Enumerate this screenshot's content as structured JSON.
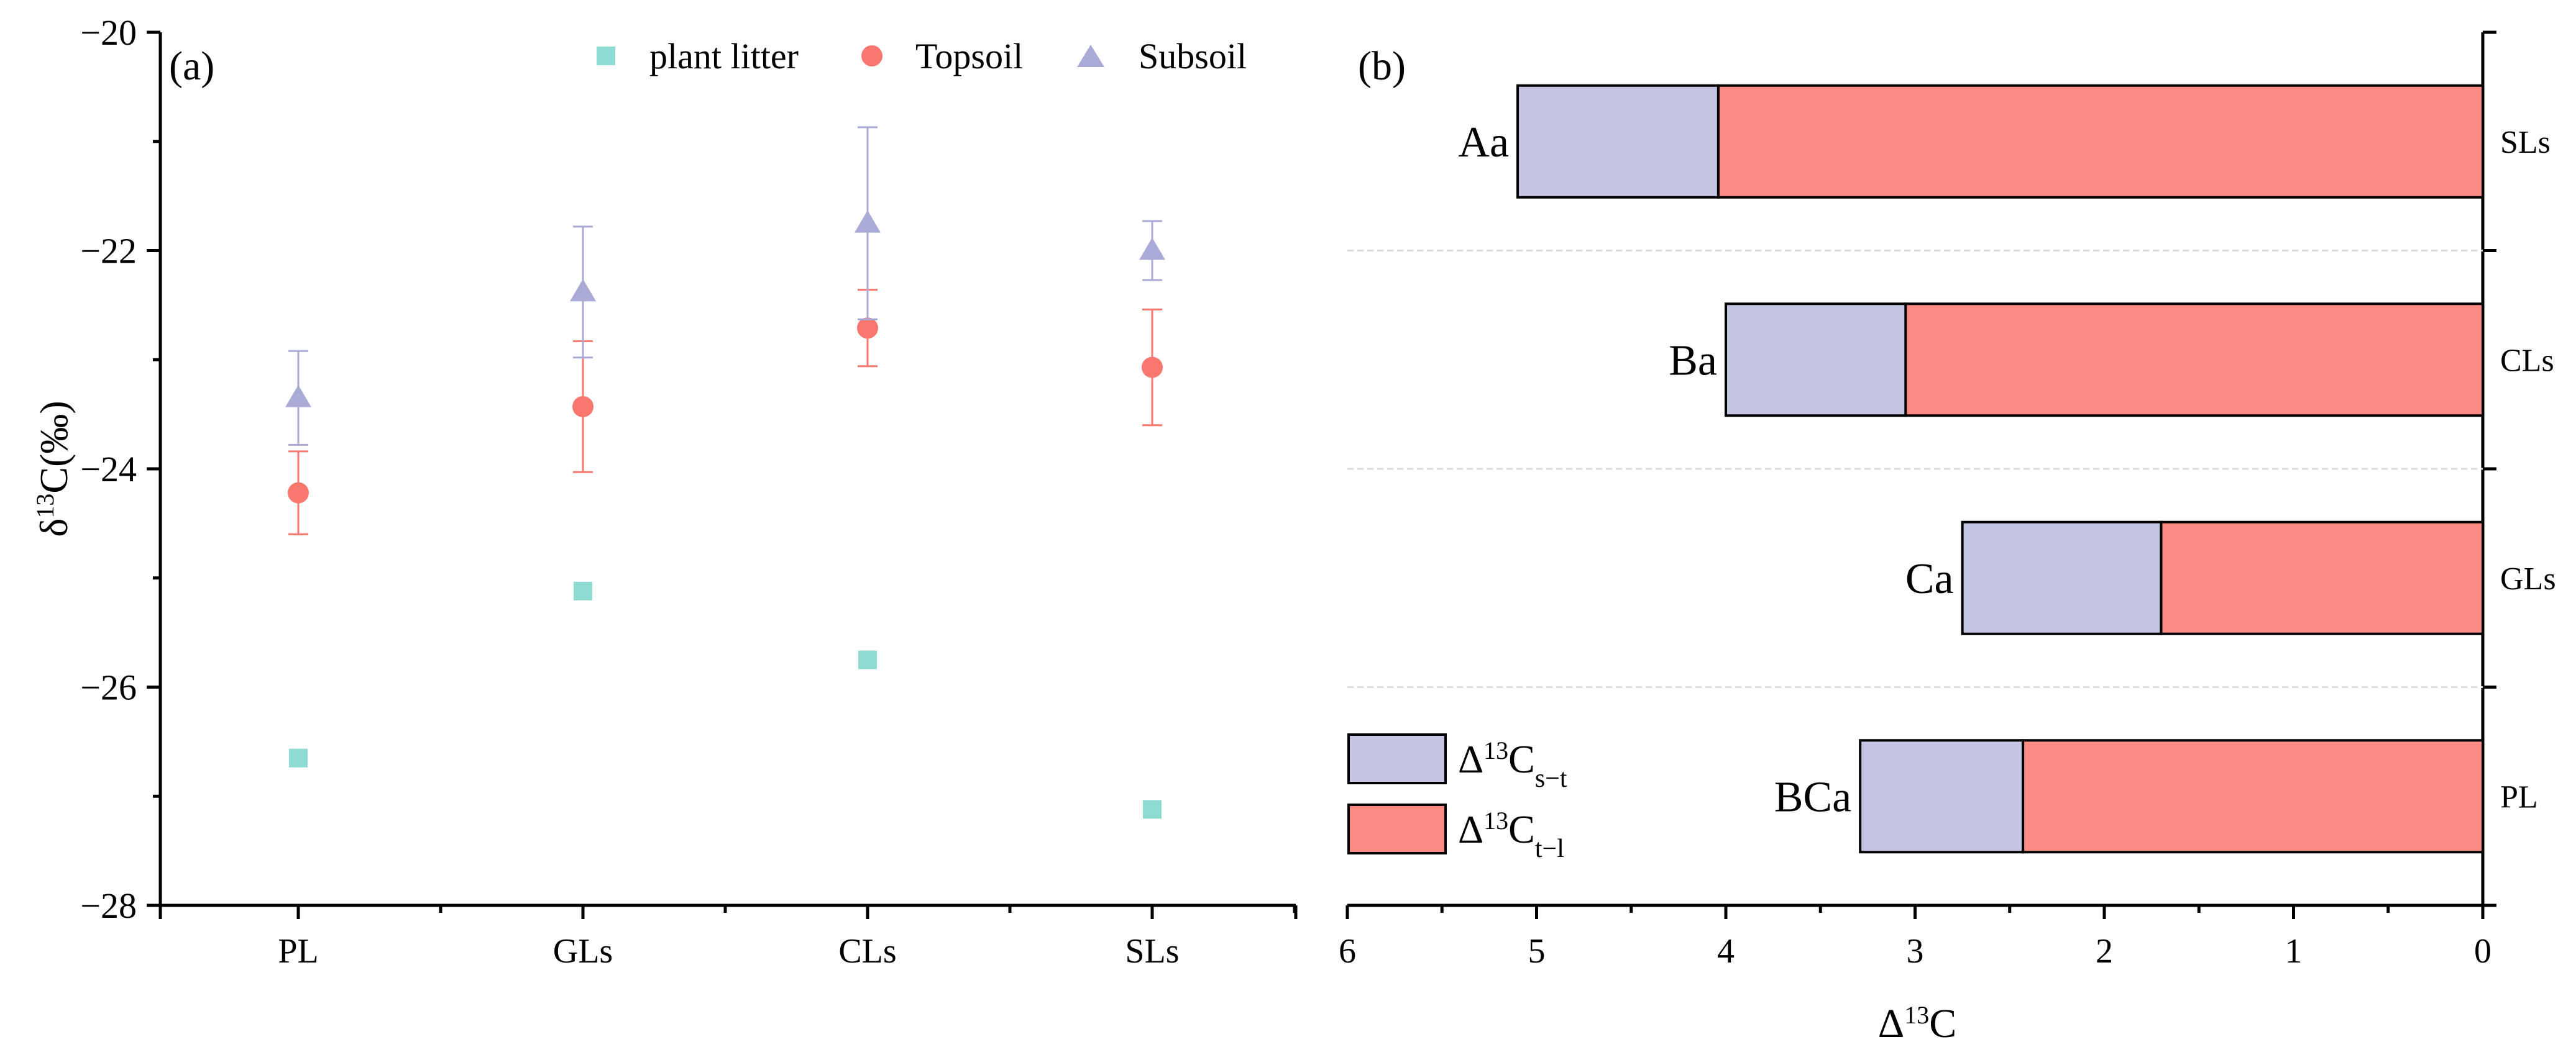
{
  "chart_data": [
    {
      "panel_label": "(a)",
      "type": "scatter",
      "ylabel_main": "δ",
      "ylabel_sup": "13",
      "ylabel_rest": "C(‰)",
      "categories": [
        "PL",
        "GLs",
        "CLs",
        "SLs"
      ],
      "ylim": [
        -28,
        -20
      ],
      "yticks": [
        "−28",
        "−26",
        "−24",
        "−22",
        "−20"
      ],
      "series": [
        {
          "name": "plant litter",
          "marker": "square",
          "color": "#8edbd4",
          "values": [
            -26.65,
            -25.12,
            -25.75,
            -27.12
          ],
          "errors": [
            0,
            0,
            0,
            0
          ]
        },
        {
          "name": "Topsoil",
          "marker": "circle",
          "color": "#f9776e",
          "values": [
            -24.22,
            -23.43,
            -22.71,
            -23.07
          ],
          "errors": [
            0.38,
            0.6,
            0.35,
            0.53
          ]
        },
        {
          "name": "Subsoil",
          "marker": "triangle",
          "color": "#aaaad7",
          "values": [
            -23.35,
            -22.38,
            -21.75,
            -22.0
          ],
          "errors": [
            0.43,
            0.6,
            0.88,
            0.27
          ]
        }
      ]
    },
    {
      "panel_label": "(b)",
      "type": "bar",
      "orientation": "horizontal-stacked",
      "xlabel_main": "Δ",
      "xlabel_sup": "13",
      "xlabel_rest": "C",
      "xlim": [
        6,
        0
      ],
      "xticks": [
        "6",
        "5",
        "4",
        "3",
        "2",
        "1",
        "0"
      ],
      "categories": [
        "SLs",
        "CLs",
        "GLs",
        "PL"
      ],
      "group_letters": [
        "Aa",
        "Ba",
        "Ca",
        "BCa"
      ],
      "series": [
        {
          "name_main": "Δ",
          "name_sup": "13",
          "name_base": "C",
          "name_sub": "s−t",
          "color": "#c4c4e3",
          "values": [
            1.06,
            0.95,
            1.05,
            0.86
          ]
        },
        {
          "name_main": "Δ",
          "name_sup": "13",
          "name_base": "C",
          "name_sub": "t−l",
          "color": "#fb8b82",
          "values": [
            4.04,
            3.05,
            1.7,
            2.43
          ]
        }
      ]
    }
  ]
}
